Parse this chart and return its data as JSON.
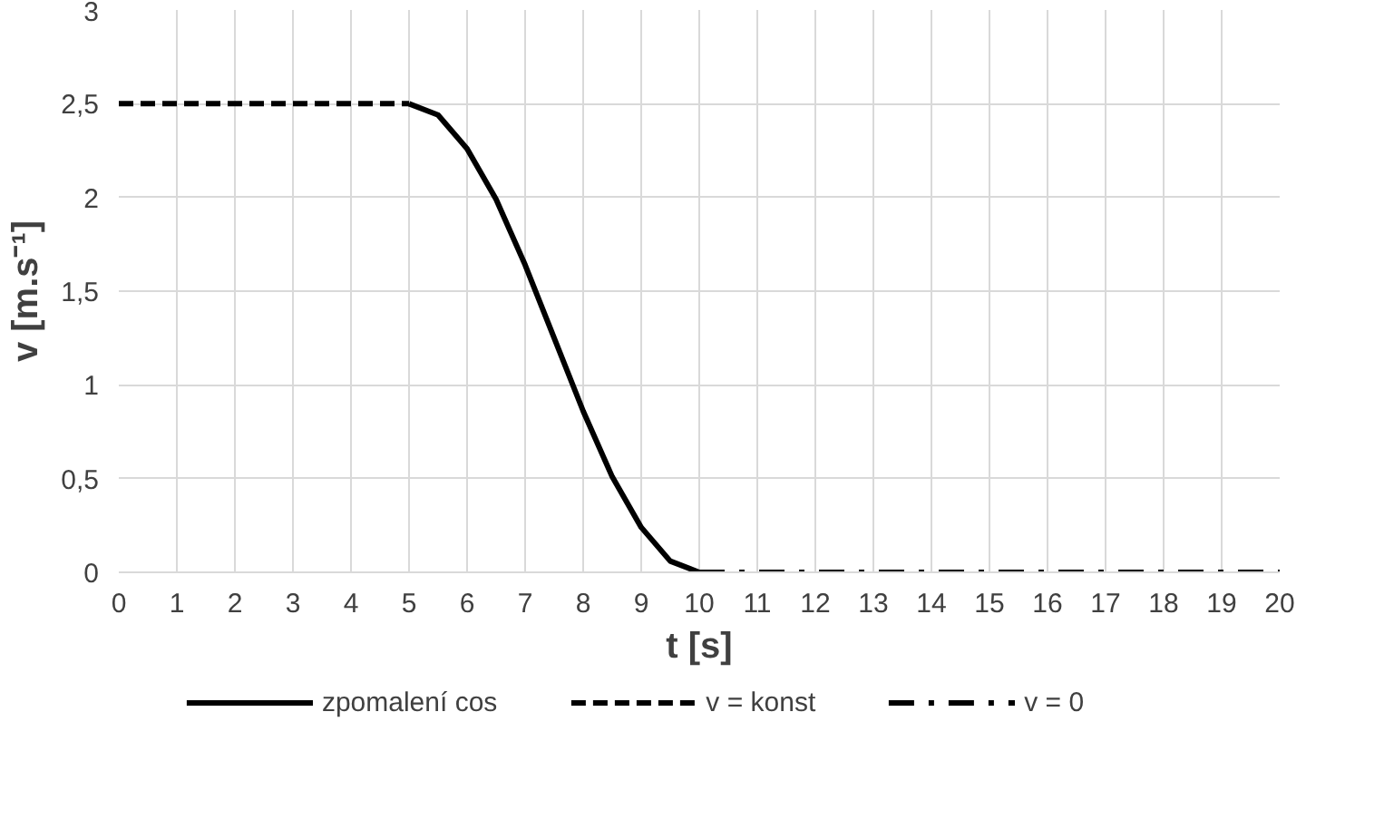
{
  "chart_data": {
    "type": "line",
    "xlabel": "t [s]",
    "ylabel": "v [m.s⁻¹]",
    "xlim": [
      0,
      20
    ],
    "xticks": [
      0,
      1,
      2,
      3,
      4,
      5,
      6,
      7,
      8,
      9,
      10,
      11,
      12,
      13,
      14,
      15,
      16,
      17,
      18,
      19,
      20
    ],
    "ylim": [
      0,
      3
    ],
    "yticks": [
      0,
      {
        "value": 0.5,
        "label": "0,5"
      },
      1,
      {
        "value": 1.5,
        "label": "1,5"
      },
      2,
      {
        "value": 2.5,
        "label": "2,5"
      },
      3
    ],
    "grid": true,
    "legend": "bottom",
    "series": [
      {
        "name": "zpomalení cos",
        "color": "#000000",
        "line_style": "solid",
        "x": [
          5,
          5.5,
          6,
          6.5,
          7,
          7.5,
          8,
          8.5,
          9,
          9.5,
          10
        ],
        "values": [
          2.5,
          2.44,
          2.26,
          1.99,
          1.64,
          1.25,
          0.86,
          0.51,
          0.24,
          0.06,
          0
        ]
      },
      {
        "name": "v = konst",
        "color": "#000000",
        "line_style": "dashed",
        "x": [
          0,
          5
        ],
        "values": [
          2.5,
          2.5
        ]
      },
      {
        "name": "v = 0",
        "color": "#000000",
        "line_style": "dashdot",
        "x": [
          10,
          20
        ],
        "values": [
          0,
          0
        ]
      }
    ]
  }
}
